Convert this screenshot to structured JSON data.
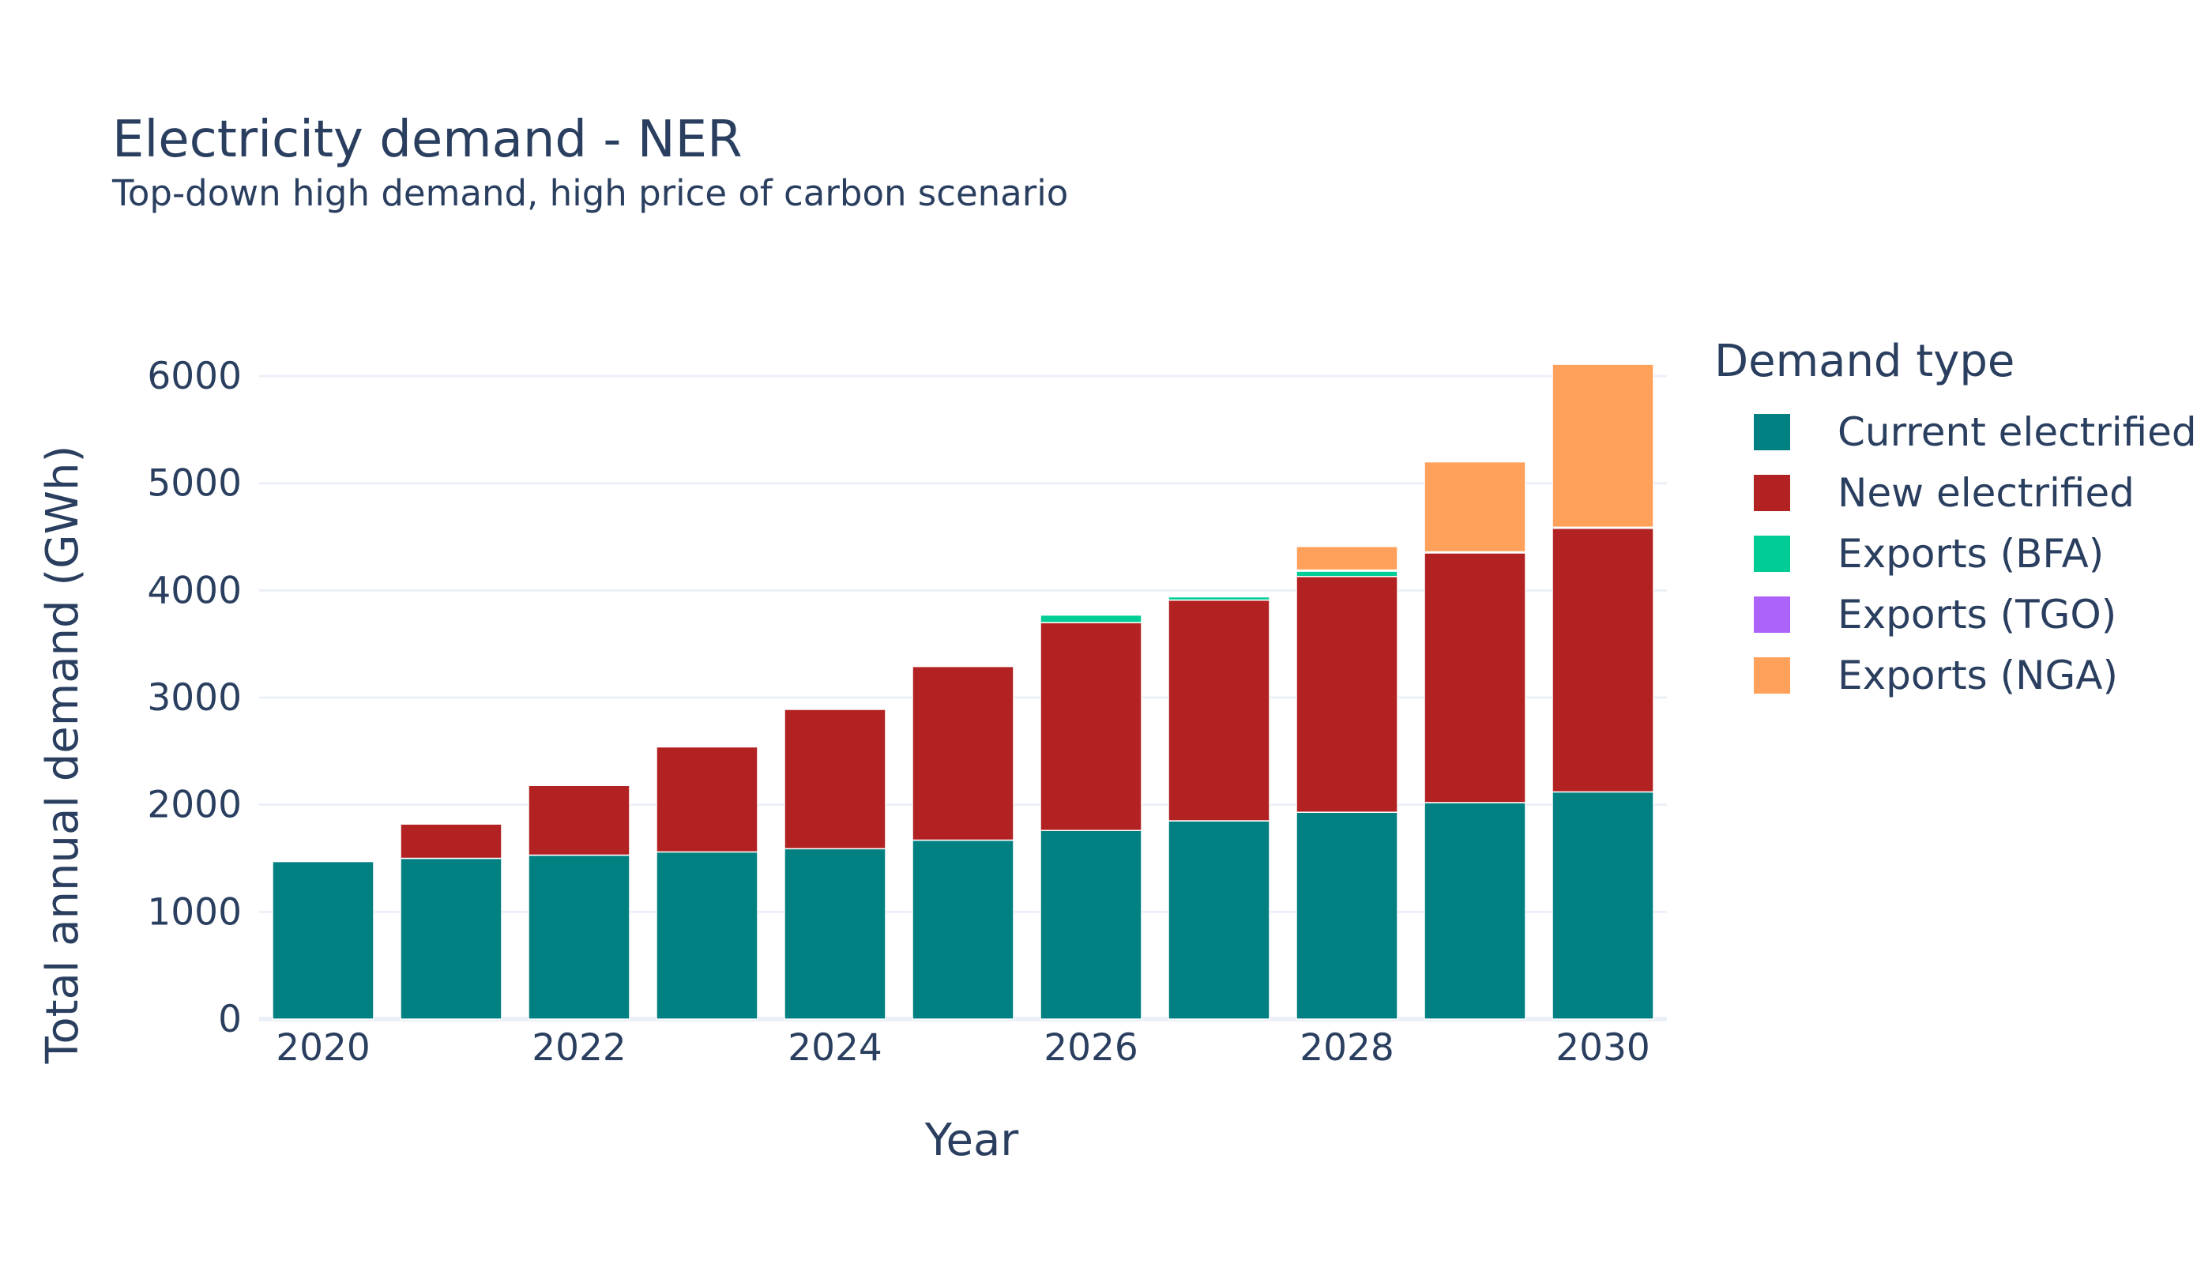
{
  "chart_data": {
    "type": "bar",
    "stacked": true,
    "title": "Electricity demand - NER",
    "subtitle": "Top-down high demand, high price of carbon scenario",
    "xlabel": "Year",
    "ylabel": "Total annual demand (GWh)",
    "ylim": [
      0,
      6450
    ],
    "yticks": [
      0,
      1000,
      2000,
      3000,
      4000,
      5000,
      6000
    ],
    "ytick_labels": [
      "0",
      "1000",
      "2000",
      "3000",
      "4000",
      "5000",
      "6000"
    ],
    "xticks": [
      2020,
      2022,
      2024,
      2026,
      2028,
      2030
    ],
    "xtick_labels": [
      "2020",
      "2022",
      "2024",
      "2026",
      "2028",
      "2030"
    ],
    "grid": true,
    "legend_title": "Demand type",
    "legend_position": "right",
    "categories": [
      2020,
      2021,
      2022,
      2023,
      2024,
      2025,
      2026,
      2027,
      2028,
      2029,
      2030
    ],
    "series": [
      {
        "name": "Current electrified",
        "color": "#008080",
        "values": [
          1470,
          1500,
          1530,
          1560,
          1590,
          1670,
          1760,
          1850,
          1930,
          2020,
          2120
        ]
      },
      {
        "name": "New electrified",
        "color": "#b22222",
        "values": [
          0,
          320,
          650,
          980,
          1300,
          1620,
          1940,
          2060,
          2200,
          2330,
          2460
        ]
      },
      {
        "name": "Exports (BFA)",
        "color": "#00cc96",
        "values": [
          0,
          0,
          0,
          0,
          0,
          0,
          70,
          30,
          50,
          0,
          0
        ]
      },
      {
        "name": "Exports (TGO)",
        "color": "#ab63fa",
        "values": [
          0,
          0,
          0,
          0,
          0,
          0,
          0,
          0,
          10,
          10,
          10
        ]
      },
      {
        "name": "Exports (NGA)",
        "color": "#ffa15a",
        "values": [
          0,
          0,
          0,
          0,
          0,
          0,
          0,
          0,
          220,
          840,
          1520
        ]
      }
    ]
  }
}
